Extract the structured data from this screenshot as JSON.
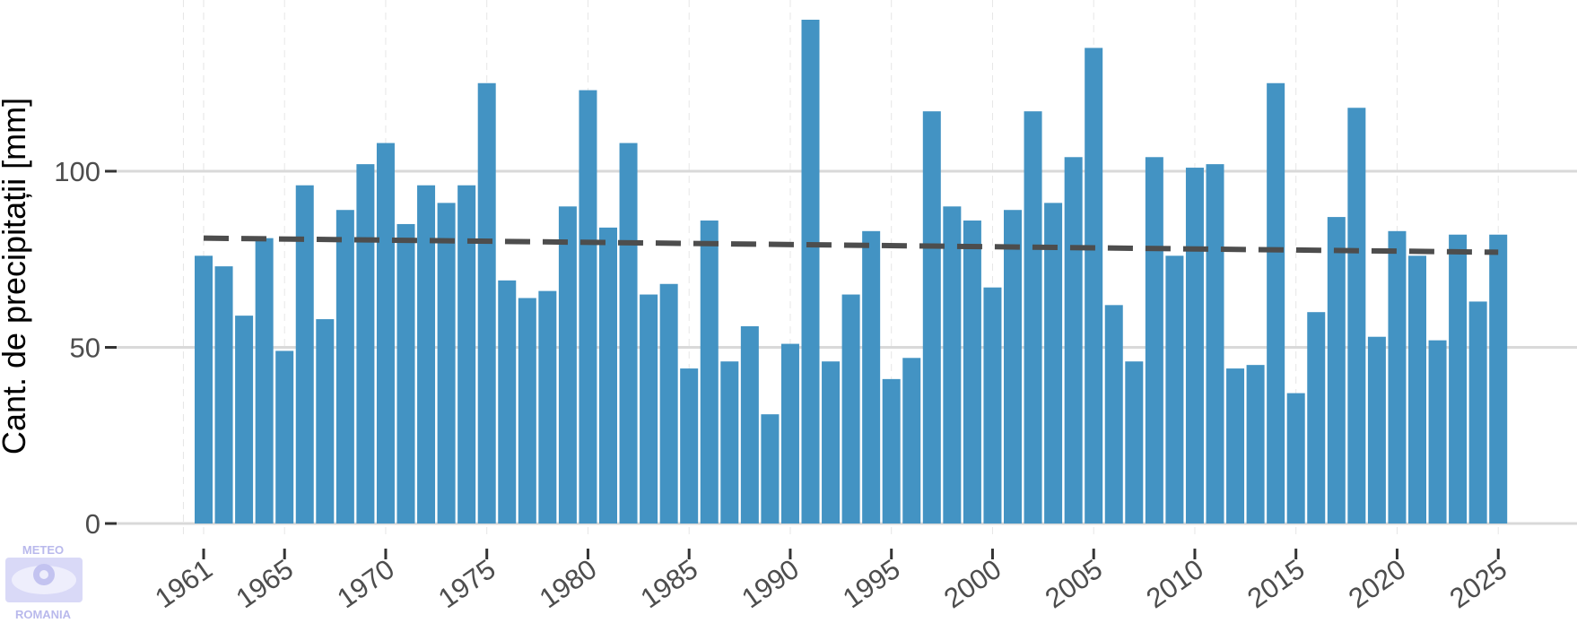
{
  "chart_data": {
    "type": "bar",
    "title": "",
    "xlabel": "",
    "ylabel": "Cant. de precipitații [mm]",
    "ylim": [
      0,
      150
    ],
    "y_ticks": [
      0,
      50,
      100
    ],
    "x_ticks": [
      1961,
      1965,
      1970,
      1975,
      1980,
      1985,
      1990,
      1995,
      2000,
      2005,
      2010,
      2015,
      2020,
      2025
    ],
    "x_range": [
      1960,
      2026
    ],
    "grid": {
      "horizontal_major": true,
      "vertical": "dashed-light"
    },
    "legend": "none",
    "colors": {
      "bars": "#4393c3",
      "trend": "#4d4d4d",
      "grid": "#d9d9d9",
      "axis_ticks": "#333333"
    },
    "categories": [
      1961,
      1962,
      1963,
      1964,
      1965,
      1966,
      1967,
      1968,
      1969,
      1970,
      1971,
      1972,
      1973,
      1974,
      1975,
      1976,
      1977,
      1978,
      1979,
      1980,
      1981,
      1982,
      1983,
      1984,
      1985,
      1986,
      1987,
      1988,
      1989,
      1990,
      1991,
      1992,
      1993,
      1994,
      1995,
      1996,
      1997,
      1998,
      1999,
      2000,
      2001,
      2002,
      2003,
      2004,
      2005,
      2006,
      2007,
      2008,
      2009,
      2010,
      2011,
      2012,
      2013,
      2014,
      2015,
      2016,
      2017,
      2018,
      2019,
      2020,
      2021,
      2022,
      2023,
      2024,
      2025
    ],
    "values": [
      76,
      73,
      59,
      81,
      49,
      96,
      58,
      89,
      102,
      108,
      85,
      96,
      91,
      96,
      125,
      69,
      64,
      66,
      90,
      123,
      84,
      108,
      65,
      68,
      44,
      86,
      46,
      56,
      31,
      51,
      143,
      46,
      65,
      83,
      41,
      47,
      117,
      90,
      86,
      67,
      89,
      117,
      91,
      104,
      135,
      62,
      46,
      104,
      76,
      101,
      102,
      44,
      45,
      125,
      37,
      60,
      87,
      118,
      53,
      83,
      76,
      52,
      82,
      63,
      82
    ],
    "series": [
      {
        "values": [
          76,
          73,
          59,
          81,
          49,
          96,
          58,
          89,
          102,
          108,
          85,
          96,
          91,
          96,
          125,
          69,
          64,
          66,
          90,
          123,
          84,
          108,
          65,
          68,
          44,
          86,
          46,
          56,
          31,
          51,
          143,
          46,
          65,
          83,
          41,
          47,
          117,
          90,
          86,
          67,
          89,
          117,
          91,
          104,
          135,
          62,
          46,
          104,
          76,
          101,
          102,
          44,
          45,
          125,
          37,
          60,
          87,
          118,
          53,
          83,
          76,
          52,
          82,
          63,
          82
        ]
      }
    ],
    "trend_line": {
      "style": "dashed",
      "x": [
        1961,
        2025
      ],
      "y": [
        81,
        77
      ]
    }
  },
  "logo": {
    "top_text": "METEO",
    "bottom_text": "ROMANIA"
  }
}
